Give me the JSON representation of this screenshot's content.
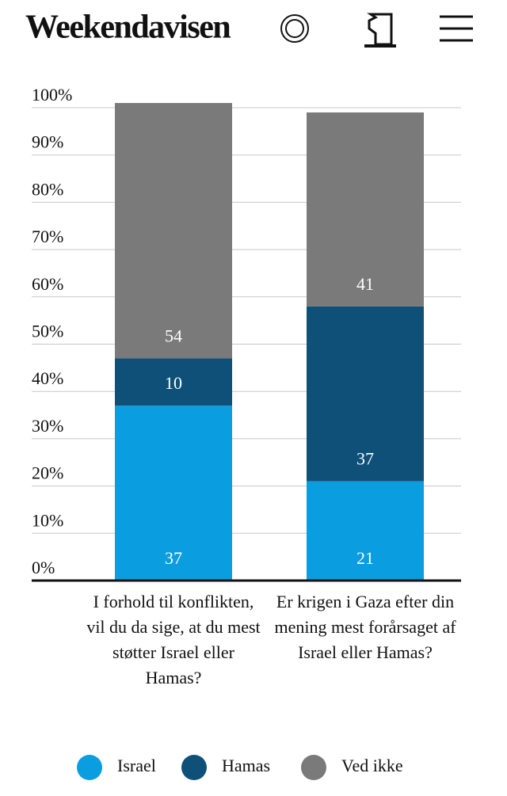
{
  "header": {
    "brand": "Weekendavisen"
  },
  "chart_data": {
    "type": "stacked-bar",
    "categories": [
      "I forhold til konflikten, vil du da sige, at du mest støtter Israel eller Hamas?",
      "Er krigen i Gaza efter din mening mest forårsaget af Israel eller Hamas?"
    ],
    "series": [
      {
        "name": "Israel",
        "color": "#0a9de0",
        "values": [
          37,
          21
        ]
      },
      {
        "name": "Hamas",
        "color": "#0f5079",
        "values": [
          10,
          37
        ]
      },
      {
        "name": "Ved ikke",
        "color": "#7a7a7a",
        "values": [
          54,
          41
        ]
      }
    ],
    "ylim": [
      0,
      100
    ],
    "yticks": [
      {
        "value": 0,
        "label": "0%"
      },
      {
        "value": 10,
        "label": "10%"
      },
      {
        "value": 20,
        "label": "20%"
      },
      {
        "value": 30,
        "label": "30%"
      },
      {
        "value": 40,
        "label": "40%"
      },
      {
        "value": 50,
        "label": "50%"
      },
      {
        "value": 60,
        "label": "60%"
      },
      {
        "value": 70,
        "label": "70%"
      },
      {
        "value": 80,
        "label": "80%"
      },
      {
        "value": 90,
        "label": "90%"
      },
      {
        "value": 100,
        "label": "100%"
      }
    ],
    "grid": true
  }
}
